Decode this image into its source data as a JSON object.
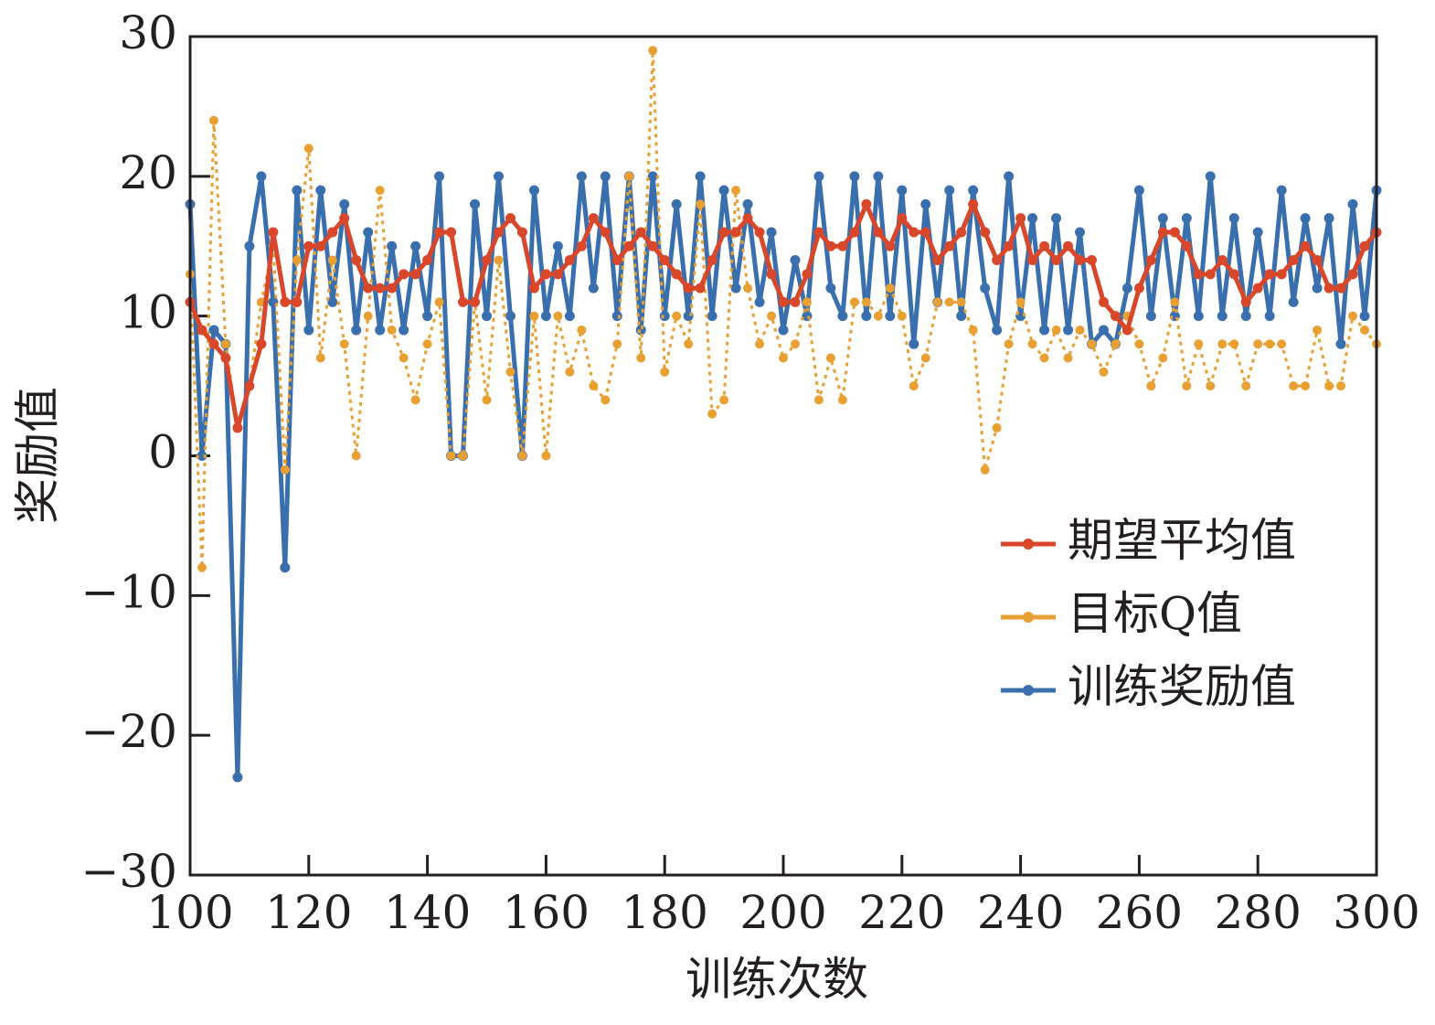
{
  "chart_data": {
    "type": "line",
    "xlabel": "训练次数",
    "ylabel": "奖励值",
    "x": [
      100,
      102,
      104,
      106,
      108,
      110,
      112,
      114,
      116,
      118,
      120,
      122,
      124,
      126,
      128,
      130,
      132,
      134,
      136,
      138,
      140,
      142,
      144,
      146,
      148,
      150,
      152,
      154,
      156,
      158,
      160,
      162,
      164,
      166,
      168,
      170,
      172,
      174,
      176,
      178,
      180,
      182,
      184,
      186,
      188,
      190,
      192,
      194,
      196,
      198,
      200,
      202,
      204,
      206,
      208,
      210,
      212,
      214,
      216,
      218,
      220,
      222,
      224,
      226,
      228,
      230,
      232,
      234,
      236,
      238,
      240,
      242,
      244,
      246,
      248,
      250,
      252,
      254,
      256,
      258,
      260,
      262,
      264,
      266,
      268,
      270,
      272,
      274,
      276,
      278,
      280,
      282,
      284,
      286,
      288,
      290,
      292,
      294,
      296,
      298,
      300
    ],
    "series": [
      {
        "name": "训练奖励值",
        "color": "#3a6fae",
        "style": "solid",
        "values": [
          18,
          0,
          9,
          8,
          -23,
          15,
          20,
          11,
          -8,
          19,
          9,
          19,
          11,
          18,
          9,
          16,
          9,
          15,
          9,
          15,
          10,
          20,
          0,
          0,
          18,
          10,
          20,
          10,
          0,
          19,
          10,
          15,
          10,
          20,
          12,
          20,
          10,
          20,
          9,
          20,
          10,
          18,
          10,
          20,
          10,
          19,
          12,
          18,
          11,
          16,
          9,
          14,
          10,
          20,
          12,
          10,
          20,
          10,
          20,
          10,
          19,
          8,
          18,
          11,
          19,
          10,
          19,
          12,
          9,
          20,
          10,
          17,
          9,
          17,
          9,
          16,
          8,
          9,
          8,
          12,
          19,
          10,
          17,
          10,
          17,
          10,
          20,
          10,
          17,
          10,
          16,
          10,
          19,
          11,
          17,
          12,
          17,
          8,
          18,
          10,
          19
        ]
      },
      {
        "name": "目标Q值",
        "color": "#e8a033",
        "style": "dotted",
        "values": [
          13,
          -8,
          24,
          8,
          2,
          5,
          11,
          15,
          -1,
          14,
          22,
          7,
          14,
          8,
          0,
          10,
          19,
          9,
          7,
          4,
          8,
          11,
          0,
          0,
          11,
          4,
          14,
          6,
          0,
          10,
          0,
          10,
          6,
          9,
          5,
          4,
          8,
          20,
          7,
          29,
          6,
          10,
          8,
          18,
          3,
          4,
          19,
          12,
          8,
          10,
          7,
          8,
          11,
          4,
          7,
          4,
          11,
          11,
          10,
          12,
          10,
          5,
          7,
          11,
          11,
          11,
          9,
          -1,
          2,
          8,
          11,
          8,
          7,
          9,
          7,
          9,
          8,
          6,
          8,
          10,
          8,
          5,
          7,
          11,
          5,
          8,
          5,
          8,
          8,
          5,
          8,
          8,
          8,
          5,
          5,
          9,
          5,
          5,
          10,
          9,
          8
        ]
      },
      {
        "name": "期望平均值",
        "color": "#d9472b",
        "style": "solid",
        "values": [
          11,
          9,
          8,
          7,
          2,
          5,
          8,
          16,
          11,
          11,
          15,
          15,
          16,
          17,
          14,
          12,
          12,
          12,
          13,
          13,
          14,
          16,
          16,
          11,
          11,
          14,
          16,
          17,
          16,
          12,
          13,
          13,
          14,
          15,
          17,
          16,
          14,
          15,
          16,
          15,
          14,
          13,
          12,
          12,
          14,
          16,
          16,
          17,
          16,
          13,
          11,
          11,
          13,
          16,
          15,
          15,
          16,
          18,
          16,
          15,
          17,
          16,
          16,
          14,
          15,
          16,
          18,
          16,
          14,
          15,
          17,
          14,
          15,
          14,
          15,
          14,
          14,
          11,
          10,
          9,
          12,
          14,
          16,
          16,
          15,
          13,
          13,
          14,
          13,
          11,
          12,
          13,
          13,
          14,
          15,
          14,
          12,
          12,
          13,
          15,
          16
        ]
      }
    ],
    "legend_order": [
      2,
      1,
      0
    ],
    "xlim": [
      100,
      300
    ],
    "xticks": [
      100,
      120,
      140,
      160,
      180,
      200,
      220,
      240,
      260,
      280,
      300
    ],
    "ylim": [
      -30,
      30
    ],
    "yticks": [
      {
        "value": -30,
        "label": "−30"
      },
      {
        "value": -20,
        "label": "−20"
      },
      {
        "value": -10,
        "label": "−10"
      },
      0,
      10,
      20,
      30
    ],
    "legend_position": "center right",
    "grid": false
  }
}
